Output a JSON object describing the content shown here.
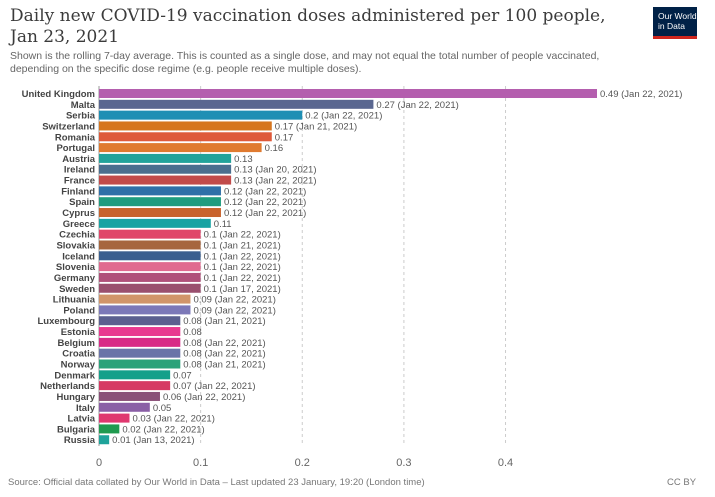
{
  "header": {
    "title": "Daily new COVID-19 vaccination doses administered per 100 people, Jan 23, 2021",
    "subtitle": "Shown is the rolling 7-day average. This is counted as a single dose, and may not equal the total number of people vaccinated, depending on the specific dose regime (e.g. people receive multiple doses).",
    "logo_line1": "Our World",
    "logo_line2": "in Data"
  },
  "footer": {
    "source": "Source: Official data collated by Our World in Data – Last updated 23 January, 19:20 (London time)",
    "license": "CC BY"
  },
  "chart_data": {
    "type": "bar",
    "orientation": "horizontal",
    "title": "Daily new COVID-19 vaccination doses administered per 100 people, Jan 23, 2021",
    "xlim": [
      0,
      0.49
    ],
    "xticks": [
      "0",
      "0.1",
      "0.2",
      "0.3",
      "0.4"
    ],
    "xtick_values": [
      0,
      0.1,
      0.2,
      0.3,
      0.4
    ],
    "bars": [
      {
        "country": "United Kingdom",
        "value": 0.49,
        "label": "0.49 (Jan 22, 2021)",
        "color": "#b45eae"
      },
      {
        "country": "Malta",
        "value": 0.27,
        "label": "0.27 (Jan 22, 2021)",
        "color": "#5a6790"
      },
      {
        "country": "Serbia",
        "value": 0.2,
        "label": "0.2 (Jan 22, 2021)",
        "color": "#1f8fb4"
      },
      {
        "country": "Switzerland",
        "value": 0.17,
        "label": "0.17 (Jan 21, 2021)",
        "color": "#d6761f"
      },
      {
        "country": "Romania",
        "value": 0.17,
        "label": "0.17",
        "color": "#de5a3a"
      },
      {
        "country": "Portugal",
        "value": 0.16,
        "label": "0.16",
        "color": "#e07a2f"
      },
      {
        "country": "Austria",
        "value": 0.13,
        "label": "0.13",
        "color": "#22a39a"
      },
      {
        "country": "Ireland",
        "value": 0.13,
        "label": "0.13 (Jan 20, 2021)",
        "color": "#4a6e8e"
      },
      {
        "country": "France",
        "value": 0.13,
        "label": "0.13 (Jan 22, 2021)",
        "color": "#c14a4a"
      },
      {
        "country": "Finland",
        "value": 0.12,
        "label": "0.12 (Jan 22, 2021)",
        "color": "#2f6fa8"
      },
      {
        "country": "Spain",
        "value": 0.12,
        "label": "0.12 (Jan 22, 2021)",
        "color": "#1f9c7f"
      },
      {
        "country": "Cyprus",
        "value": 0.12,
        "label": "0.12 (Jan 22, 2021)",
        "color": "#c8632d"
      },
      {
        "country": "Greece",
        "value": 0.11,
        "label": "0.11",
        "color": "#18a3a3"
      },
      {
        "country": "Czechia",
        "value": 0.1,
        "label": "0.1 (Jan 22, 2021)",
        "color": "#e0466a"
      },
      {
        "country": "Slovakia",
        "value": 0.1,
        "label": "0.1 (Jan 21, 2021)",
        "color": "#a6663e"
      },
      {
        "country": "Iceland",
        "value": 0.1,
        "label": "0.1 (Jan 22, 2021)",
        "color": "#3a5f8f"
      },
      {
        "country": "Slovenia",
        "value": 0.1,
        "label": "0.1 (Jan 22, 2021)",
        "color": "#e06a8f"
      },
      {
        "country": "Germany",
        "value": 0.1,
        "label": "0.1 (Jan 22, 2021)",
        "color": "#b0517a"
      },
      {
        "country": "Sweden",
        "value": 0.1,
        "label": "0.1 (Jan 17, 2021)",
        "color": "#9a4f6e"
      },
      {
        "country": "Lithuania",
        "value": 0.09,
        "label": "0.09 (Jan 22, 2021)",
        "color": "#d1956a"
      },
      {
        "country": "Poland",
        "value": 0.09,
        "label": "0.09 (Jan 22, 2021)",
        "color": "#7c78b8"
      },
      {
        "country": "Luxembourg",
        "value": 0.08,
        "label": "0.08 (Jan 21, 2021)",
        "color": "#5b5f8f"
      },
      {
        "country": "Estonia",
        "value": 0.08,
        "label": "0.08",
        "color": "#e8388f"
      },
      {
        "country": "Belgium",
        "value": 0.08,
        "label": "0.08 (Jan 22, 2021)",
        "color": "#d82a86"
      },
      {
        "country": "Croatia",
        "value": 0.08,
        "label": "0.08 (Jan 22, 2021)",
        "color": "#6a74a8"
      },
      {
        "country": "Norway",
        "value": 0.08,
        "label": "0.08 (Jan 21, 2021)",
        "color": "#2aa27a"
      },
      {
        "country": "Denmark",
        "value": 0.07,
        "label": "0.07",
        "color": "#15a08a"
      },
      {
        "country": "Netherlands",
        "value": 0.07,
        "label": "0.07 (Jan 22, 2021)",
        "color": "#d63a63"
      },
      {
        "country": "Hungary",
        "value": 0.06,
        "label": "0.06 (Jan 22, 2021)",
        "color": "#8a5078"
      },
      {
        "country": "Italy",
        "value": 0.05,
        "label": "0.05",
        "color": "#8a5fa6"
      },
      {
        "country": "Latvia",
        "value": 0.03,
        "label": "0.03 (Jan 22, 2021)",
        "color": "#e0386f"
      },
      {
        "country": "Bulgaria",
        "value": 0.02,
        "label": "0.02 (Jan 22, 2021)",
        "color": "#1f9a4f"
      },
      {
        "country": "Russia",
        "value": 0.01,
        "label": "0.01 (Jan 13, 2021)",
        "color": "#1fa39a"
      }
    ]
  }
}
